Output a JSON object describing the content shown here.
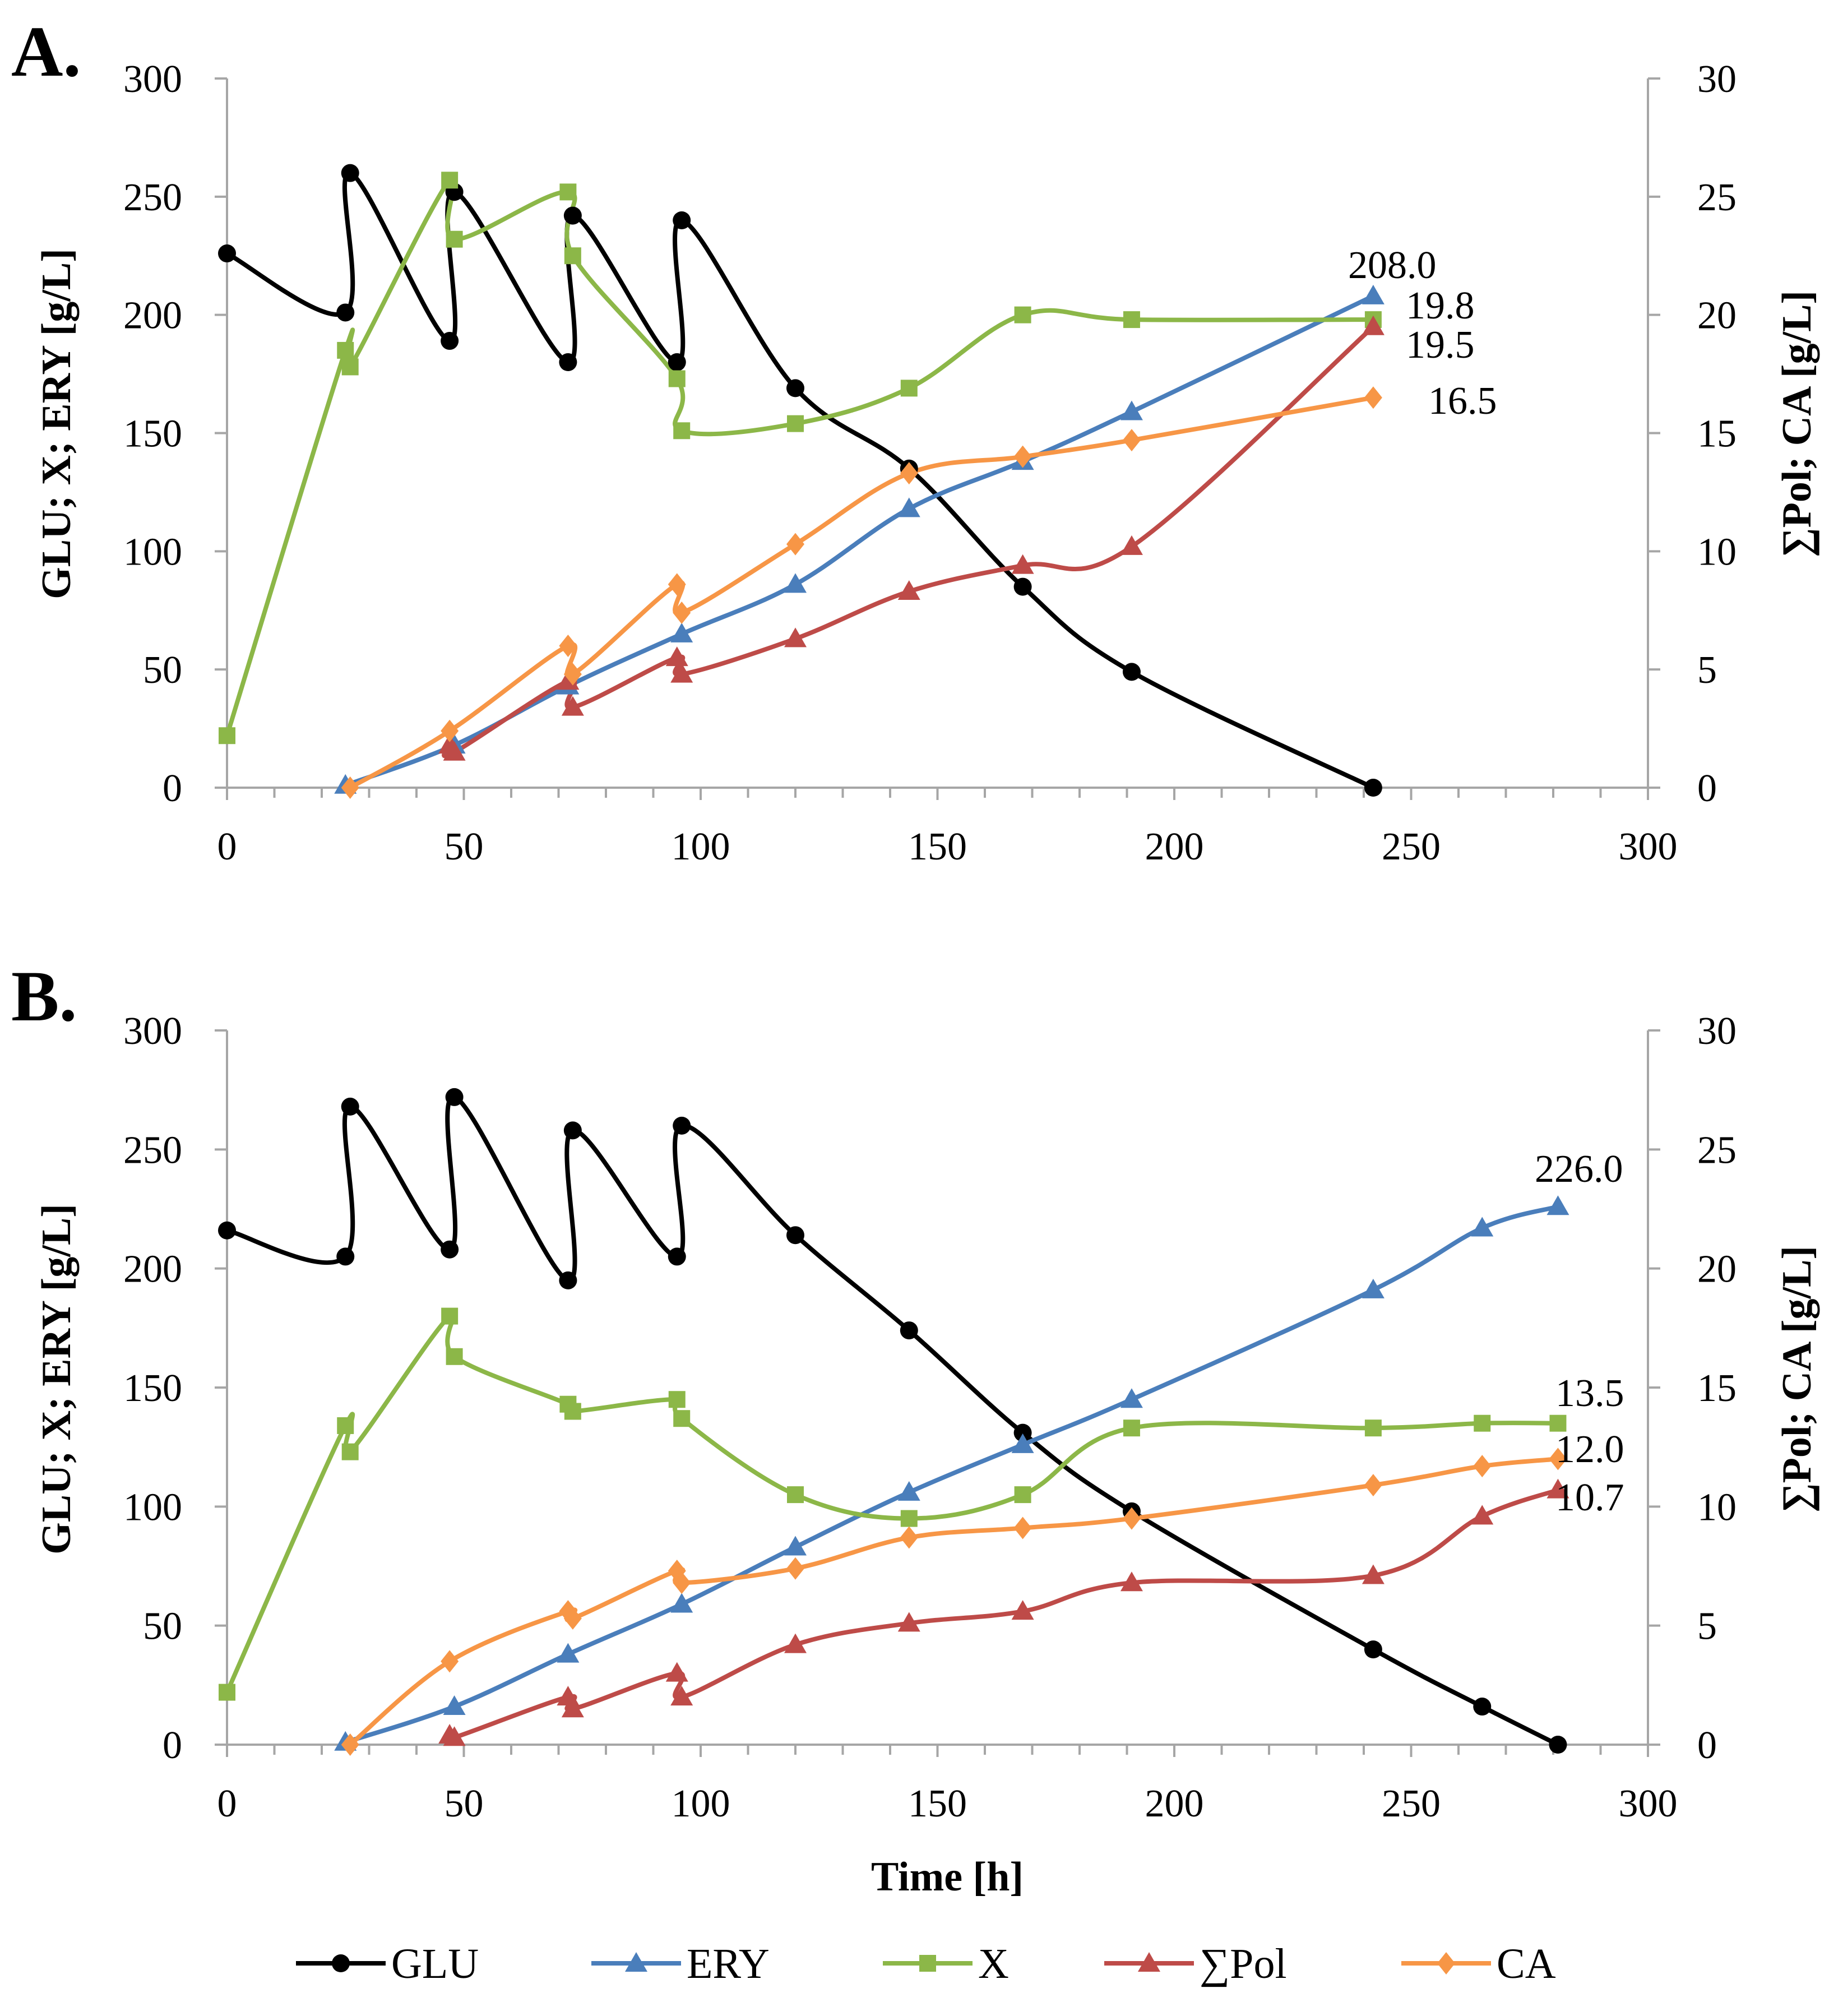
{
  "chart_data": [
    {
      "type": "line",
      "panel_label": "A.",
      "xlabel": "",
      "ylabel": "GLU; X; ERY [g/L]",
      "y2label": "∑Pol; CA [g/L]",
      "xlim": [
        0,
        300
      ],
      "xticks": [
        "0",
        "50",
        "100",
        "150",
        "200",
        "250",
        "300"
      ],
      "ylim": [
        0,
        300
      ],
      "yticks": [
        "0",
        "50",
        "100",
        "150",
        "200",
        "250",
        "300"
      ],
      "y2lim": [
        0,
        30
      ],
      "y2ticks": [
        "0",
        "5",
        "10",
        "15",
        "20",
        "25",
        "30"
      ],
      "series": [
        {
          "name": "GLU",
          "axis": "left",
          "color": "#000000",
          "marker": "circle",
          "x": [
            0,
            25,
            26,
            47,
            48,
            72,
            73,
            95,
            96,
            120,
            144,
            168,
            191,
            242
          ],
          "y": [
            226,
            201,
            260,
            189,
            252,
            180,
            242,
            180,
            240,
            169,
            135,
            85,
            49,
            0
          ]
        },
        {
          "name": "ERY",
          "axis": "left",
          "color": "#4a7ebb",
          "marker": "triangle",
          "x": [
            25,
            48,
            72,
            96,
            120,
            144,
            168,
            191,
            242
          ],
          "y": [
            1,
            18,
            43,
            65,
            86,
            118,
            138,
            159,
            208
          ]
        },
        {
          "name": "X",
          "axis": "left",
          "color": "#8cb748",
          "marker": "square",
          "x": [
            0,
            25,
            26,
            47,
            48,
            72,
            73,
            95,
            96,
            120,
            144,
            168,
            191,
            242
          ],
          "y": [
            22,
            185,
            178,
            257,
            232,
            252,
            225,
            173,
            151,
            154,
            169,
            200,
            198,
            198
          ]
        },
        {
          "name": "∑Pol",
          "axis": "right",
          "color": "#be4b48",
          "marker": "triangle",
          "x": [
            47,
            48,
            72,
            73,
            95,
            96,
            120,
            144,
            168,
            191,
            242
          ],
          "y": [
            1.8,
            1.5,
            4.5,
            3.4,
            5.5,
            4.8,
            6.3,
            8.3,
            9.4,
            10.2,
            19.5
          ]
        },
        {
          "name": "CA",
          "axis": "right",
          "color": "#f79646",
          "marker": "diamond",
          "x": [
            26,
            47,
            72,
            73,
            95,
            96,
            120,
            144,
            168,
            191,
            242
          ],
          "y": [
            0,
            2.4,
            6.0,
            4.8,
            8.6,
            7.4,
            10.3,
            13.3,
            14.0,
            14.7,
            16.5
          ]
        }
      ],
      "end_labels": [
        "208.0",
        "19.8",
        "19.5",
        "16.5"
      ]
    },
    {
      "type": "line",
      "panel_label": "B.",
      "xlabel": "Time [h]",
      "ylabel": "GLU; X; ERY [g/L]",
      "y2label": "∑Pol; CA [g/L]",
      "xlim": [
        0,
        300
      ],
      "xticks": [
        "0",
        "50",
        "100",
        "150",
        "200",
        "250",
        "300"
      ],
      "ylim": [
        0,
        300
      ],
      "yticks": [
        "0",
        "50",
        "100",
        "150",
        "200",
        "250",
        "300"
      ],
      "y2lim": [
        0,
        30
      ],
      "y2ticks": [
        "0",
        "5",
        "10",
        "15",
        "20",
        "25",
        "30"
      ],
      "series": [
        {
          "name": "GLU",
          "axis": "left",
          "color": "#000000",
          "marker": "circle",
          "x": [
            0,
            25,
            26,
            47,
            48,
            72,
            73,
            95,
            96,
            120,
            144,
            168,
            191,
            242,
            265,
            281
          ],
          "y": [
            216,
            205,
            268,
            208,
            272,
            195,
            258,
            205,
            260,
            214,
            174,
            131,
            98,
            40,
            16,
            0
          ]
        },
        {
          "name": "ERY",
          "axis": "left",
          "color": "#4a7ebb",
          "marker": "triangle",
          "x": [
            25,
            48,
            72,
            96,
            120,
            144,
            168,
            191,
            242,
            265,
            281
          ],
          "y": [
            1,
            16,
            38,
            59,
            83,
            106,
            126,
            145,
            191,
            217,
            226
          ]
        },
        {
          "name": "X",
          "axis": "left",
          "color": "#8cb748",
          "marker": "square",
          "x": [
            0,
            25,
            26,
            47,
            48,
            72,
            73,
            95,
            96,
            120,
            144,
            168,
            191,
            242,
            265,
            281
          ],
          "y": [
            22,
            134,
            123,
            180,
            163,
            143,
            140,
            145,
            137,
            105,
            95,
            105,
            133,
            133,
            135,
            135
          ]
        },
        {
          "name": "∑Pol",
          "axis": "right",
          "color": "#be4b48",
          "marker": "triangle",
          "x": [
            47,
            48,
            72,
            73,
            95,
            96,
            120,
            144,
            168,
            191,
            242,
            265,
            281
          ],
          "y": [
            0.4,
            0.3,
            2.0,
            1.5,
            3.0,
            2.0,
            4.2,
            5.1,
            5.6,
            6.8,
            7.1,
            9.6,
            10.7
          ]
        },
        {
          "name": "CA",
          "axis": "right",
          "color": "#f79646",
          "marker": "diamond",
          "x": [
            26,
            47,
            72,
            73,
            95,
            96,
            120,
            144,
            168,
            191,
            242,
            265,
            281
          ],
          "y": [
            0,
            3.5,
            5.6,
            5.3,
            7.3,
            6.8,
            7.4,
            8.7,
            9.1,
            9.5,
            10.9,
            11.7,
            12.0
          ]
        }
      ],
      "end_labels": [
        "226.0",
        "13.5",
        "12.0",
        "10.7"
      ]
    }
  ],
  "legend": [
    {
      "name": "GLU",
      "color": "#000000",
      "marker": "circle"
    },
    {
      "name": "ERY",
      "color": "#4a7ebb",
      "marker": "triangle"
    },
    {
      "name": "X",
      "color": "#8cb748",
      "marker": "square"
    },
    {
      "name": "∑Pol",
      "color": "#be4b48",
      "marker": "triangle"
    },
    {
      "name": "CA",
      "color": "#f79646",
      "marker": "diamond"
    }
  ]
}
